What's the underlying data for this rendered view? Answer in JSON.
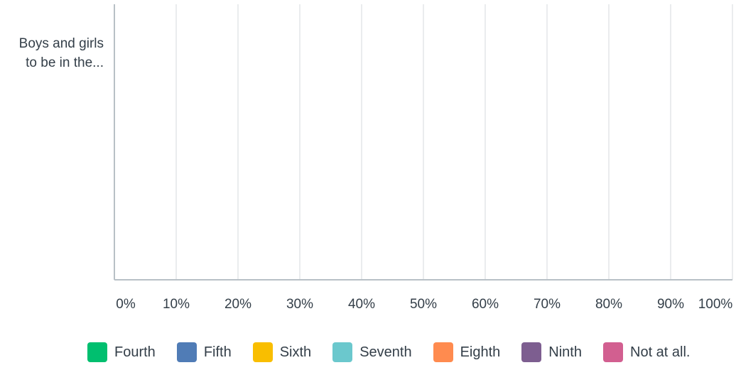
{
  "chart_data": {
    "type": "bar",
    "orientation": "horizontal",
    "stacked": true,
    "categories": [
      "Boys and girls to be in the..."
    ],
    "category_label_lines": [
      "Boys and girls",
      "to be in the..."
    ],
    "xlim": [
      0,
      100
    ],
    "x_ticks": [
      "0%",
      "10%",
      "20%",
      "30%",
      "40%",
      "50%",
      "60%",
      "70%",
      "80%",
      "90%",
      "100%"
    ],
    "grid": true,
    "legend_position": "bottom",
    "series": [
      {
        "name": "Fourth",
        "color": "#00bf6f",
        "values": [
          0
        ]
      },
      {
        "name": "Fifth",
        "color": "#507cb6",
        "values": [
          0
        ]
      },
      {
        "name": "Sixth",
        "color": "#f9be00",
        "values": [
          0
        ]
      },
      {
        "name": "Seventh",
        "color": "#6bc8cd",
        "values": [
          0
        ]
      },
      {
        "name": "Eighth",
        "color": "#ff8b4f",
        "values": [
          0
        ]
      },
      {
        "name": "Ninth",
        "color": "#7d5e90",
        "values": [
          0
        ]
      },
      {
        "name": "Not at all.",
        "color": "#d25f90",
        "values": [
          0
        ]
      }
    ]
  }
}
